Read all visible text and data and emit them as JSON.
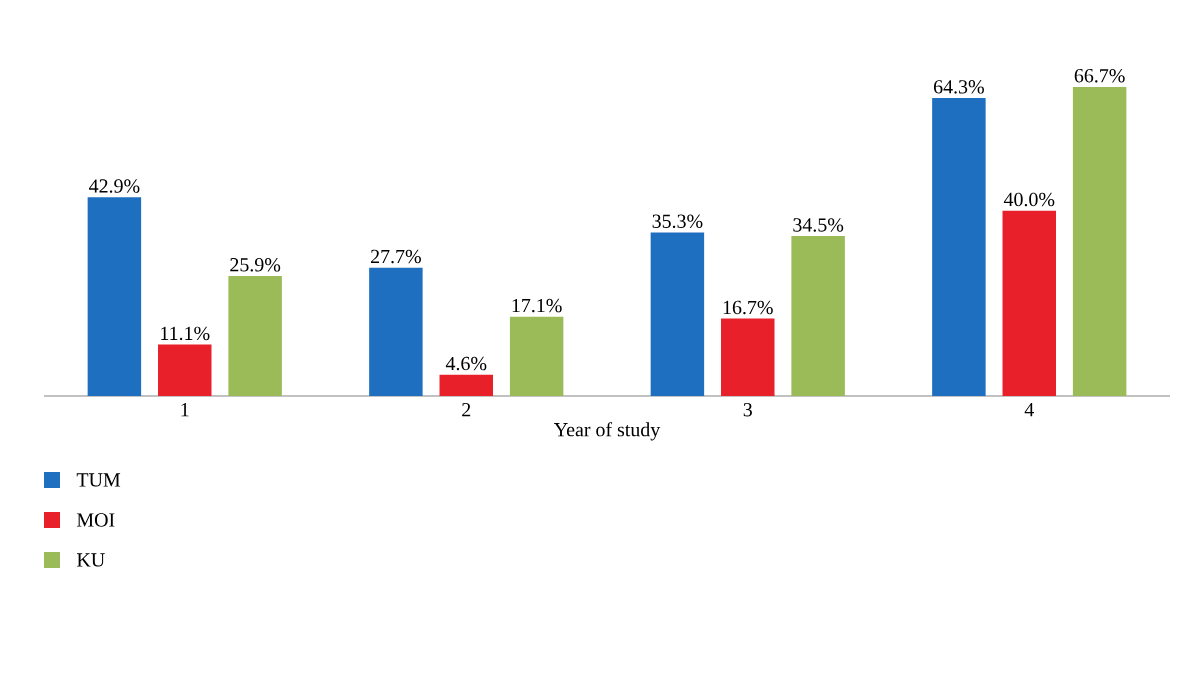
{
  "chart_data": {
    "type": "bar",
    "xlabel": "Year of study",
    "categories": [
      "1",
      "2",
      "3",
      "4"
    ],
    "legend": "bottom left",
    "series": [
      {
        "name": "TUM",
        "color": "#1f6fc0",
        "values": [
          42.9,
          27.7,
          35.3,
          64.3
        ],
        "value_labels": [
          "42.9%",
          "27.7%",
          "35.3%",
          "64.3%"
        ]
      },
      {
        "name": "MOI",
        "color": "#e8202a",
        "values": [
          11.1,
          4.6,
          16.7,
          40.0
        ],
        "value_labels": [
          "11.1%",
          "4.6%",
          "16.7%",
          "40.0%"
        ]
      },
      {
        "name": "KU",
        "color": "#9bbb59",
        "values": [
          25.9,
          17.1,
          34.5,
          66.7
        ],
        "value_labels": [
          "25.9%",
          "17.1%",
          "34.5%",
          "66.7%"
        ]
      }
    ]
  }
}
